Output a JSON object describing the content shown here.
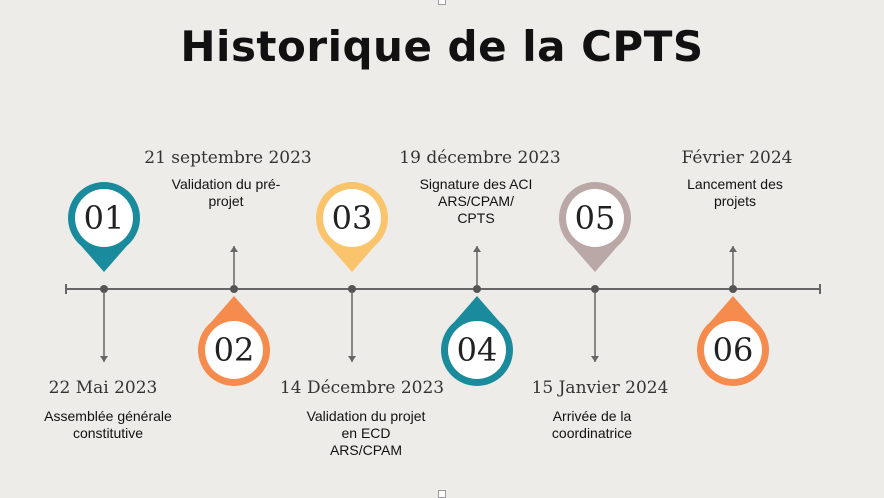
{
  "title": "Historique de la CPTS",
  "colors": {
    "teal": "#1a8b9d",
    "orange": "#f58b4c",
    "yellow": "#f9c46b",
    "mauve": "#b9a8a5",
    "line": "#666666"
  },
  "milestones": [
    {
      "number": "01",
      "date": "22 Mai 2023",
      "label": "Assemblée générale\nconstitutive",
      "color": "teal"
    },
    {
      "number": "02",
      "date": "21 septembre 2023",
      "label": "Validation du pré-\nprojet",
      "color": "orange"
    },
    {
      "number": "03",
      "date": "14 Décembre 2023",
      "label": "Validation du projet\nen ECD\nARS/CPAM",
      "color": "yellow"
    },
    {
      "number": "04",
      "date": "19 décembre 2023",
      "label": "Signature des ACI\nARS/CPAM/\nCPTS",
      "color": "teal"
    },
    {
      "number": "05",
      "date": "15 Janvier 2024",
      "label": "Arrivée de la\ncoordinatrice",
      "color": "mauve"
    },
    {
      "number": "06",
      "date": "Février 2024",
      "label": "Lancement des\nprojets",
      "color": "orange"
    }
  ]
}
